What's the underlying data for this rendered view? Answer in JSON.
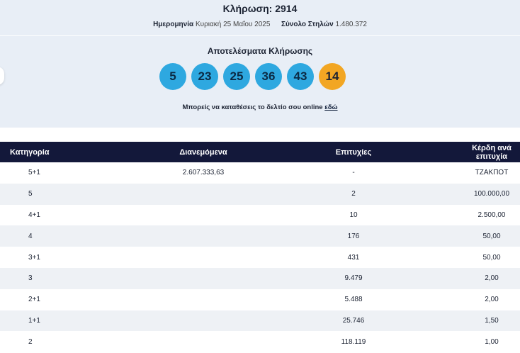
{
  "header": {
    "title": "Κλήρωση: 2914",
    "date_label": "Ημερομηνία",
    "date_value": "Κυριακή 25 Μαΐου 2025",
    "columns_label": "Σύνολο Στηλών",
    "columns_value": "1.480.372"
  },
  "results": {
    "title": "Αποτελέσματα Κλήρωσης",
    "numbers": [
      "5",
      "23",
      "25",
      "36",
      "43"
    ],
    "joker": "14",
    "online_text": "Μπορείς να καταθέσεις το δελτίο σου online",
    "online_link": "εδώ",
    "colors": {
      "number_ball": "#2ea8e0",
      "joker_ball": "#f2a623",
      "header_bg": "#13183a"
    }
  },
  "table": {
    "headers": [
      "Κατηγορία",
      "Διανεμόμενα",
      "Επιτυχίες",
      "Κέρδη ανά επιτυχία"
    ],
    "rows": [
      [
        "5+1",
        "2.607.333,63",
        "-",
        "ΤΖΑΚΠΟΤ"
      ],
      [
        "5",
        "",
        "2",
        "100.000,00"
      ],
      [
        "4+1",
        "",
        "10",
        "2.500,00"
      ],
      [
        "4",
        "",
        "176",
        "50,00"
      ],
      [
        "3+1",
        "",
        "431",
        "50,00"
      ],
      [
        "3",
        "",
        "9.479",
        "2,00"
      ],
      [
        "2+1",
        "",
        "5.488",
        "2,00"
      ],
      [
        "1+1",
        "",
        "25.746",
        "1,50"
      ],
      [
        "2",
        "",
        "118.119",
        "1,00"
      ]
    ]
  }
}
